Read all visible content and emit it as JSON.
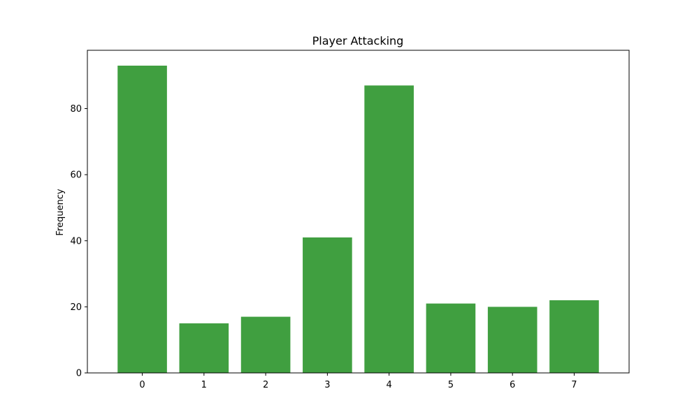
{
  "chart_data": {
    "type": "bar",
    "title": "Player Attacking",
    "xlabel": "",
    "ylabel": "Frequency",
    "categories": [
      "0",
      "1",
      "2",
      "3",
      "4",
      "5",
      "6",
      "7"
    ],
    "values": [
      93,
      15,
      17,
      41,
      87,
      21,
      20,
      22
    ],
    "ylim": [
      0,
      97.65
    ],
    "yticks": [
      0,
      20,
      40,
      60,
      80
    ],
    "bar_color": "#409f40",
    "grid": false,
    "legend": "none"
  }
}
